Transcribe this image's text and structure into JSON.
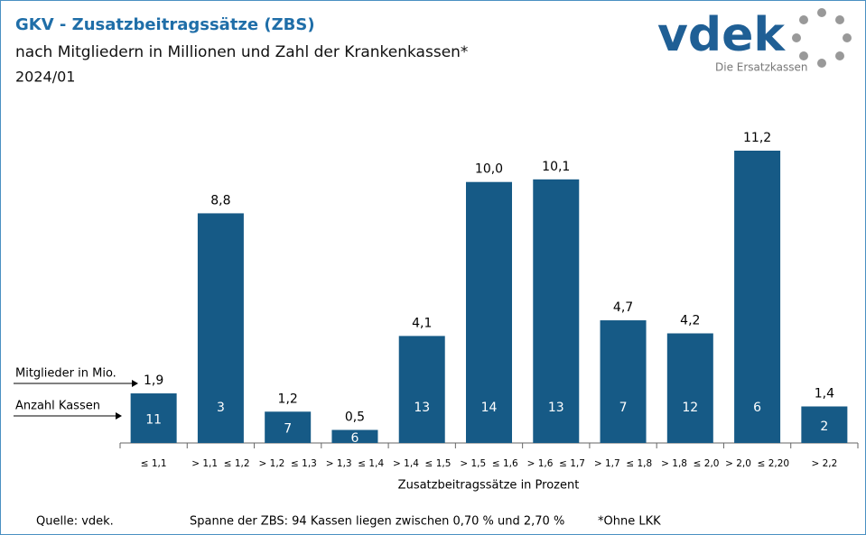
{
  "chart_data": {
    "type": "bar",
    "title": "GKV - Zusatzbeitragssätze (ZBS)",
    "subtitle": "nach Mitgliedern in Millionen und Zahl der Krankenkassen*",
    "period": "2024/01",
    "logo": {
      "name": "vdek",
      "tagline": "Die Ersatzkassen"
    },
    "categories": [
      "≤ 1,1",
      "> 1,1  ≤ 1,2",
      "> 1,2  ≤ 1,3",
      "> 1,3  ≤ 1,4",
      "> 1,4  ≤ 1,5",
      "> 1,5  ≤ 1,6",
      "> 1,6  ≤ 1,7",
      "> 1,7  ≤ 1,8",
      "> 1,8  ≤ 2,0",
      "> 2,0  ≤ 2,20",
      "> 2,2"
    ],
    "values": [
      1.9,
      8.8,
      1.2,
      0.5,
      4.1,
      10.0,
      10.1,
      4.7,
      4.2,
      11.2,
      1.4
    ],
    "value_labels": [
      "1,9",
      "8,8",
      "1,2",
      "0,5",
      "4,1",
      "10,0",
      "10,1",
      "4,7",
      "4,2",
      "11,2",
      "1,4"
    ],
    "kassen": [
      11,
      3,
      7,
      6,
      13,
      14,
      13,
      7,
      12,
      6,
      2
    ],
    "color": "#165a86",
    "xlabel": "Zusatzbeitragssätze in Prozent",
    "annotations": [
      "Mitglieder in Mio.",
      "Anzahl Kassen"
    ],
    "footer": [
      "Quelle: vdek.",
      "Spanne der ZBS: 94 Kassen liegen zwischen 0,70 % und 2,70 %",
      "*Ohne LKK"
    ]
  }
}
